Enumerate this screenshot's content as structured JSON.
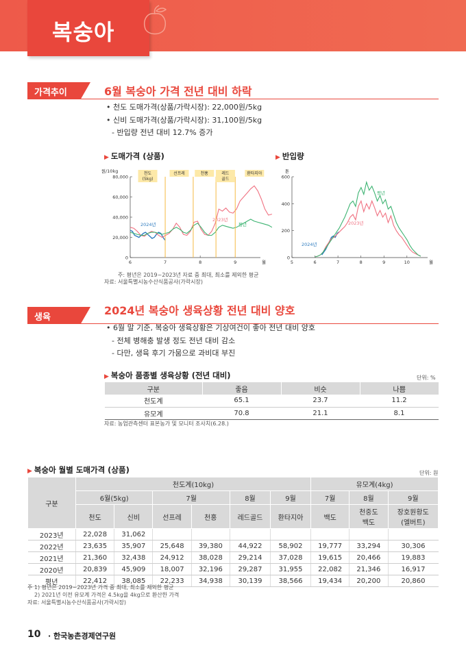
{
  "header": {
    "title": "복숭아"
  },
  "section1": {
    "tag": "가격추이",
    "heading": "6월 복숭아 가격 전년 대비 하락",
    "bullets": [
      "• 천도 도매가격(상품/가락시장): 22,000원/5kg",
      "• 신비 도매가격(상품/가락시장): 31,100원/5kg",
      "- 반입량 전년 대비 12.7% 증가"
    ],
    "chart1_title": "도매가격 (상품)",
    "chart2_title": "반입량",
    "note1": "주: 평년은 2019~2023년 자료 중 최대, 최소를 제외한 평균",
    "source1": "자료: 서울특별시농수산식품공사(가락시장)"
  },
  "chart_data": [
    {
      "type": "line",
      "title": "도매가격 (상품)",
      "ylabel": "원/10kg",
      "xlabel": "월",
      "x_ticks": [
        "6",
        "7",
        "8",
        "9"
      ],
      "y_ticks": [
        "0",
        "20,000",
        "40,000",
        "60,000",
        "80,000"
      ],
      "ylim": [
        0,
        80000
      ],
      "variety_labels": [
        "천도\n(5kg)",
        "선프레",
        "천홍",
        "레드\n골드",
        "환타지아"
      ],
      "series": [
        {
          "name": "2024년",
          "color": "#2e7bbf",
          "values": [
            27000,
            26000,
            22000,
            21000,
            20000,
            22000,
            24000,
            25000,
            23000,
            21000,
            19000,
            20000,
            23000,
            25000,
            24000,
            20000,
            17000
          ]
        },
        {
          "name": "2023년",
          "color": "#f07080",
          "values": [
            30000,
            29000,
            26000,
            22000,
            21000,
            24000,
            26000,
            25000,
            22000,
            20000,
            22000,
            24000,
            28000,
            34000,
            30000,
            23000,
            22000,
            26000,
            35000,
            36000,
            28000,
            23000,
            22000,
            26000,
            34000,
            48000,
            46000,
            49000,
            45000,
            44000,
            48000,
            56000,
            60000,
            64000,
            68000,
            71000,
            66000,
            58000,
            48000,
            42000,
            43000
          ]
        },
        {
          "name": "평년",
          "color": "#3cb371",
          "values": [
            25000,
            24000,
            23000,
            22000,
            22000,
            24000,
            25000,
            25000,
            24000,
            23000,
            24000,
            25000,
            28000,
            30000,
            28000,
            25000,
            24000,
            27000,
            32000,
            34000,
            30000,
            25000,
            22000,
            22000,
            25000,
            30000,
            32000,
            31000,
            30000,
            29000,
            30000,
            32000,
            34000,
            36000,
            38000,
            36000,
            35000,
            34000,
            33000,
            32000,
            30000
          ]
        }
      ]
    },
    {
      "type": "line",
      "title": "반입량",
      "ylabel": "톤",
      "xlabel": "월",
      "x_ticks": [
        "5",
        "6",
        "7",
        "8",
        "9",
        "10"
      ],
      "y_ticks": [
        "0",
        "200",
        "400",
        "600"
      ],
      "ylim": [
        0,
        600
      ],
      "series": [
        {
          "name": "2024년",
          "color": "#2e7bbf",
          "values": [
            20,
            40,
            60,
            90,
            120,
            150,
            160,
            150,
            180,
            190
          ]
        },
        {
          "name": "2023년",
          "color": "#f07080",
          "values": [
            5,
            10,
            20,
            40,
            80,
            110,
            140,
            150,
            170,
            190,
            210,
            230,
            260,
            300,
            320,
            280,
            380,
            420,
            340,
            400,
            360,
            420,
            370,
            310,
            350,
            300,
            330,
            260,
            310,
            240,
            200,
            170,
            150,
            120,
            90,
            60,
            40,
            30,
            20,
            10
          ]
        },
        {
          "name": "평년",
          "color": "#3cb371",
          "values": [
            5,
            10,
            20,
            40,
            70,
            100,
            130,
            160,
            190,
            220,
            260,
            300,
            350,
            400,
            420,
            380,
            480,
            520,
            470,
            560,
            500,
            530,
            480,
            420,
            460,
            400,
            430,
            360,
            380,
            320,
            260,
            220,
            190,
            160,
            130,
            90,
            60,
            40,
            20,
            10
          ]
        }
      ]
    }
  ],
  "section2": {
    "tag": "생육",
    "heading": "2024년 복숭아 생육상황 전년 대비 양호",
    "bullets": [
      "• 6월 말 기준, 복숭아 생육상황은 기상여건이 좋아 전년 대비 양호",
      "- 전체 병해충 발생 정도 전년 대비 감소",
      "- 다만, 생육 후기 가뭄으로 과비대 부진"
    ],
    "table_title": "복숭아 품종별 생육상황 (전년 대비)",
    "unit": "단위: %",
    "table": {
      "headers": [
        "구분",
        "좋음",
        "비슷",
        "나쁨"
      ],
      "rows": [
        [
          "천도계",
          "65.1",
          "23.7",
          "11.2"
        ],
        [
          "유모계",
          "70.8",
          "21.1",
          "8.1"
        ]
      ]
    },
    "source": "자료: 농업관측센터 표본농가 및 모니터 조사치(6.28.)"
  },
  "section3": {
    "table_title": "복숭아 월별 도매가격 (상품)",
    "unit": "단위: 원",
    "head": {
      "gubun": "구분",
      "group1": "천도계(10kg)",
      "group2": "유모계(4kg)",
      "months1": [
        "6월(5kg)",
        "7월",
        "8월",
        "9월"
      ],
      "months2": [
        "7월",
        "8월",
        "9월"
      ],
      "varieties": [
        "천도",
        "신비",
        "선프레",
        "천홍",
        "레드골드",
        "환타지아",
        "백도",
        "천중도\n백도",
        "장호원황도\n(엘버트)"
      ]
    },
    "rows": [
      [
        "2023년",
        "22,028",
        "31,062",
        "",
        "",
        "",
        "",
        "",
        "",
        ""
      ],
      [
        "2022년",
        "23,635",
        "35,907",
        "25,648",
        "39,380",
        "44,922",
        "58,902",
        "19,777",
        "33,294",
        "30,306"
      ],
      [
        "2021년",
        "21,360",
        "32,438",
        "24,912",
        "38,028",
        "29,214",
        "37,028",
        "19,615",
        "20,466",
        "19,883"
      ],
      [
        "2020년",
        "20,839",
        "45,909",
        "18,007",
        "32,196",
        "29,287",
        "31,955",
        "22,082",
        "21,346",
        "16,917"
      ],
      [
        "평년",
        "22,412",
        "38,085",
        "22,233",
        "34,938",
        "30,139",
        "38,566",
        "19,434",
        "20,200",
        "20,860"
      ]
    ],
    "notes": [
      "주 1) 평년은 2019~2023년 가격 중 최대, 최소를 제외한 평균",
      "2) 2021년 이전 유모계 가격은 4.5kg을 4kg으로 환산한 가격",
      "자료: 서울특별시농수산식품공사(가락시장)"
    ]
  },
  "footer": {
    "page": "10",
    "org": "한국농촌경제연구원"
  }
}
